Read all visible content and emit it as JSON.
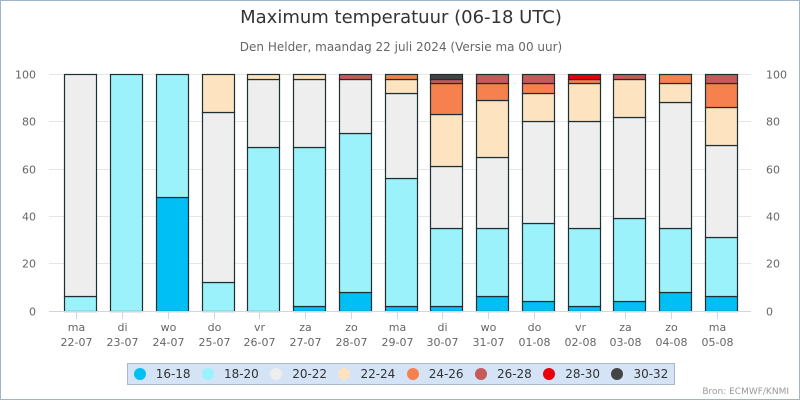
{
  "chart_data": {
    "type": "bar",
    "stacked": true,
    "title": "Maximum temperatuur (06-18 UTC)",
    "subtitle": "Den Helder, maandag 22 juli 2024 (Versie ma 00 uur)",
    "xlabel": "",
    "ylabel": "",
    "ylim": [
      0,
      100
    ],
    "yticks": [
      0,
      20,
      40,
      60,
      80,
      100
    ],
    "grid": true,
    "legend_position": "bottom-center",
    "credits": "Bron: ECMWF/KNMI",
    "categories": [
      {
        "day": "ma",
        "date": "22-07"
      },
      {
        "day": "di",
        "date": "23-07"
      },
      {
        "day": "wo",
        "date": "24-07"
      },
      {
        "day": "do",
        "date": "25-07"
      },
      {
        "day": "vr",
        "date": "26-07"
      },
      {
        "day": "za",
        "date": "27-07"
      },
      {
        "day": "zo",
        "date": "28-07"
      },
      {
        "day": "ma",
        "date": "29-07"
      },
      {
        "day": "di",
        "date": "30-07"
      },
      {
        "day": "wo",
        "date": "31-07"
      },
      {
        "day": "do",
        "date": "01-08"
      },
      {
        "day": "vr",
        "date": "02-08"
      },
      {
        "day": "za",
        "date": "03-08"
      },
      {
        "day": "zo",
        "date": "04-08"
      },
      {
        "day": "ma",
        "date": "05-08"
      }
    ],
    "series": [
      {
        "name": "16-18",
        "color": "#00bff5",
        "values": [
          0,
          0,
          48,
          0,
          0,
          2,
          8,
          2,
          2,
          6,
          4,
          2,
          4,
          8,
          6
        ]
      },
      {
        "name": "18-20",
        "color": "#9cf2fb",
        "values": [
          6,
          100,
          52,
          12,
          69,
          67,
          67,
          54,
          33,
          29,
          33,
          33,
          35,
          27,
          25
        ]
      },
      {
        "name": "20-22",
        "color": "#eeeeee",
        "values": [
          94,
          0,
          0,
          72,
          29,
          29,
          23,
          36,
          26,
          30,
          43,
          45,
          43,
          53,
          39
        ]
      },
      {
        "name": "22-24",
        "color": "#fde3c0",
        "values": [
          0,
          0,
          0,
          16,
          2,
          2,
          0,
          6,
          22,
          24,
          12,
          16,
          16,
          8,
          16
        ]
      },
      {
        "name": "24-26",
        "color": "#f7804f",
        "values": [
          0,
          0,
          0,
          0,
          0,
          0,
          0,
          2,
          13,
          7,
          4,
          2,
          0,
          4,
          10
        ]
      },
      {
        "name": "26-28",
        "color": "#c55a5a",
        "values": [
          0,
          0,
          0,
          0,
          0,
          0,
          2,
          0,
          2,
          4,
          4,
          0,
          2,
          0,
          4
        ]
      },
      {
        "name": "28-30",
        "color": "#e8000b",
        "values": [
          0,
          0,
          0,
          0,
          0,
          0,
          0,
          0,
          0,
          0,
          0,
          2,
          0,
          0,
          0
        ]
      },
      {
        "name": "30-32",
        "color": "#444444",
        "values": [
          0,
          0,
          0,
          0,
          0,
          0,
          0,
          0,
          2,
          0,
          0,
          0,
          0,
          0,
          0
        ]
      }
    ]
  }
}
